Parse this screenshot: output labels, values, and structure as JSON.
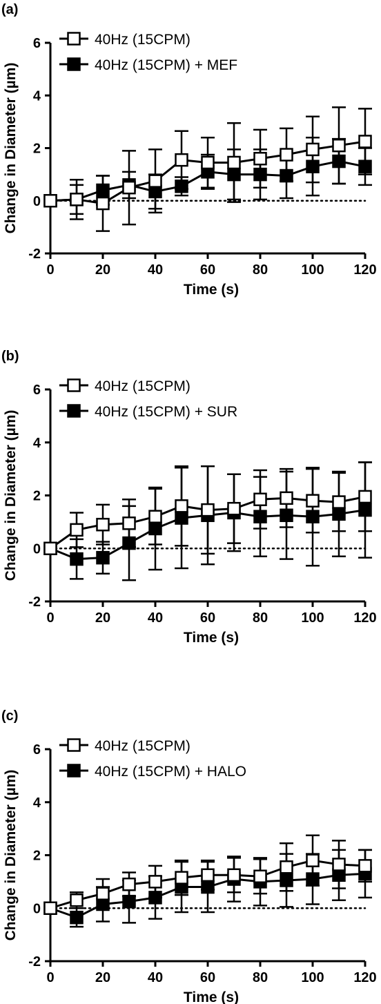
{
  "chart_data": [
    {
      "type": "line",
      "panel_label": "(a)",
      "xlabel": "Time (s)",
      "ylabel": "Change in Diameter (µm)",
      "xlim": [
        0,
        120
      ],
      "ylim": [
        -2,
        6
      ],
      "xticks": [
        0,
        20,
        40,
        60,
        80,
        100,
        120
      ],
      "yticks": [
        -2,
        0,
        2,
        4,
        6
      ],
      "reference_line": 0,
      "legend_position": "top-left",
      "x": [
        0,
        10,
        20,
        30,
        40,
        50,
        60,
        70,
        80,
        90,
        100,
        110,
        120
      ],
      "series": [
        {
          "name": "40Hz (15CPM) + MEF",
          "marker": "filled-square",
          "color": "#000000",
          "values": [
            0,
            0.05,
            0.4,
            0.6,
            0.35,
            0.55,
            1.1,
            1.0,
            1.0,
            0.95,
            1.3,
            1.5,
            1.3
          ],
          "errors": [
            0,
            0.55,
            0.55,
            0.5,
            0.65,
            0.35,
            0.65,
            0.95,
            0.95,
            0.85,
            1.1,
            0.85,
            0.7
          ]
        },
        {
          "name": "40Hz (15CPM)",
          "marker": "open-square",
          "color": "#000000",
          "values": [
            0,
            0.05,
            -0.1,
            0.5,
            0.75,
            1.55,
            1.45,
            1.45,
            1.6,
            1.75,
            1.95,
            2.1,
            2.25
          ],
          "errors": [
            0,
            0.75,
            1.05,
            1.4,
            1.2,
            1.1,
            0.95,
            1.5,
            1.1,
            1.0,
            1.25,
            1.45,
            1.25
          ]
        }
      ]
    },
    {
      "type": "line",
      "panel_label": "(b)",
      "xlabel": "Time (s)",
      "ylabel": "Change in Diameter (µm)",
      "xlim": [
        0,
        120
      ],
      "ylim": [
        -2,
        6
      ],
      "xticks": [
        0,
        20,
        40,
        60,
        80,
        100,
        120
      ],
      "yticks": [
        -2,
        0,
        2,
        4,
        6
      ],
      "reference_line": 0,
      "legend_position": "top-left",
      "x": [
        0,
        10,
        20,
        30,
        40,
        50,
        60,
        70,
        80,
        90,
        100,
        110,
        120
      ],
      "series": [
        {
          "name": "40Hz (15CPM) + SUR",
          "marker": "filled-square",
          "color": "#000000",
          "values": [
            0,
            -0.4,
            -0.35,
            0.2,
            0.75,
            1.15,
            1.25,
            1.35,
            1.2,
            1.25,
            1.2,
            1.3,
            1.45
          ],
          "errors": [
            0,
            0.75,
            0.6,
            1.4,
            1.55,
            1.9,
            1.85,
            1.45,
            1.5,
            1.65,
            1.85,
            1.6,
            1.8
          ]
        },
        {
          "name": "40Hz (15CPM)",
          "marker": "open-square",
          "color": "#000000",
          "values": [
            0,
            0.7,
            0.9,
            0.95,
            1.2,
            1.6,
            1.45,
            1.5,
            1.85,
            1.9,
            1.8,
            1.75,
            1.95
          ],
          "errors": [
            0,
            0.65,
            0.75,
            0.9,
            1.05,
            1.5,
            1.65,
            1.3,
            1.1,
            1.1,
            1.2,
            1.1,
            1.3
          ]
        }
      ]
    },
    {
      "type": "line",
      "panel_label": "(c)",
      "xlabel": "Time (s)",
      "ylabel": "Change in Diameter (µm)",
      "xlim": [
        0,
        120
      ],
      "ylim": [
        -2,
        6
      ],
      "xticks": [
        0,
        20,
        40,
        60,
        80,
        100,
        120
      ],
      "yticks": [
        -2,
        0,
        2,
        4,
        6
      ],
      "reference_line": 0,
      "legend_position": "top-left",
      "x": [
        0,
        10,
        20,
        30,
        40,
        50,
        60,
        70,
        80,
        90,
        100,
        110,
        120
      ],
      "series": [
        {
          "name": "40Hz (15CPM) + HALO",
          "marker": "filled-square",
          "color": "#000000",
          "values": [
            0,
            -0.35,
            0.15,
            0.25,
            0.4,
            0.8,
            0.8,
            1.1,
            1.0,
            1.05,
            1.1,
            1.25,
            1.3
          ],
          "errors": [
            0,
            0.35,
            0.65,
            0.8,
            0.8,
            0.95,
            0.95,
            0.85,
            0.9,
            1.0,
            0.95,
            0.95,
            0.9
          ]
        },
        {
          "name": "40Hz (15CPM)",
          "marker": "open-square",
          "color": "#000000",
          "values": [
            0,
            0.3,
            0.55,
            0.9,
            1.0,
            1.15,
            1.25,
            1.25,
            1.2,
            1.55,
            1.8,
            1.65,
            1.6
          ],
          "errors": [
            0,
            0.3,
            0.55,
            0.45,
            0.6,
            0.65,
            0.55,
            0.65,
            0.65,
            0.9,
            0.95,
            0.9,
            0.6
          ]
        }
      ]
    }
  ]
}
